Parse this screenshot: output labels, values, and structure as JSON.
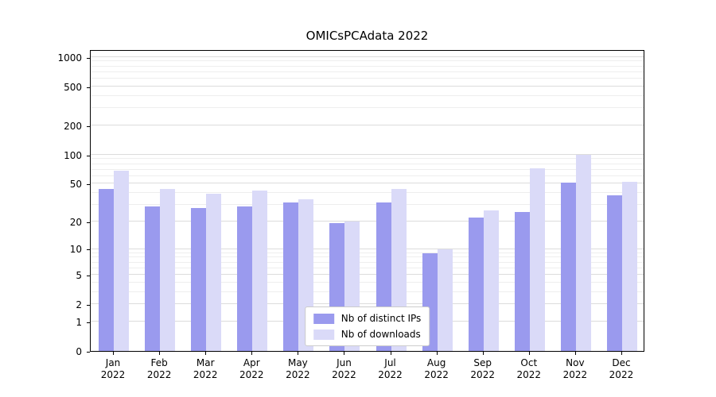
{
  "chart_data": {
    "type": "bar",
    "title": "OMICsPCAdata 2022",
    "categories": [
      "Jan",
      "Feb",
      "Mar",
      "Apr",
      "May",
      "Jun",
      "Jul",
      "Aug",
      "Sep",
      "Oct",
      "Nov",
      "Dec"
    ],
    "year": "2022",
    "series": [
      {
        "name": "Nb of distinct IPs",
        "color": "#9a9aee",
        "values": [
          44,
          29,
          28,
          29,
          32,
          19,
          32,
          9,
          22,
          25,
          51,
          38
        ]
      },
      {
        "name": "Nb of downloads",
        "color": "#dadaf8",
        "values": [
          68,
          44,
          39,
          42,
          34,
          20,
          44,
          10,
          26,
          72,
          100,
          52
        ]
      }
    ],
    "yscale": "log1p",
    "ylim": [
      0,
      1200
    ],
    "yticks": [
      0,
      1,
      2,
      5,
      10,
      20,
      50,
      100,
      200,
      500,
      1000
    ],
    "yticks_minor": [
      3,
      4,
      6,
      7,
      8,
      9,
      30,
      40,
      60,
      70,
      80,
      90,
      300,
      400,
      600,
      700,
      800,
      900
    ],
    "xlabel": "",
    "ylabel": "",
    "grid": true,
    "legend_position": "lower center"
  }
}
